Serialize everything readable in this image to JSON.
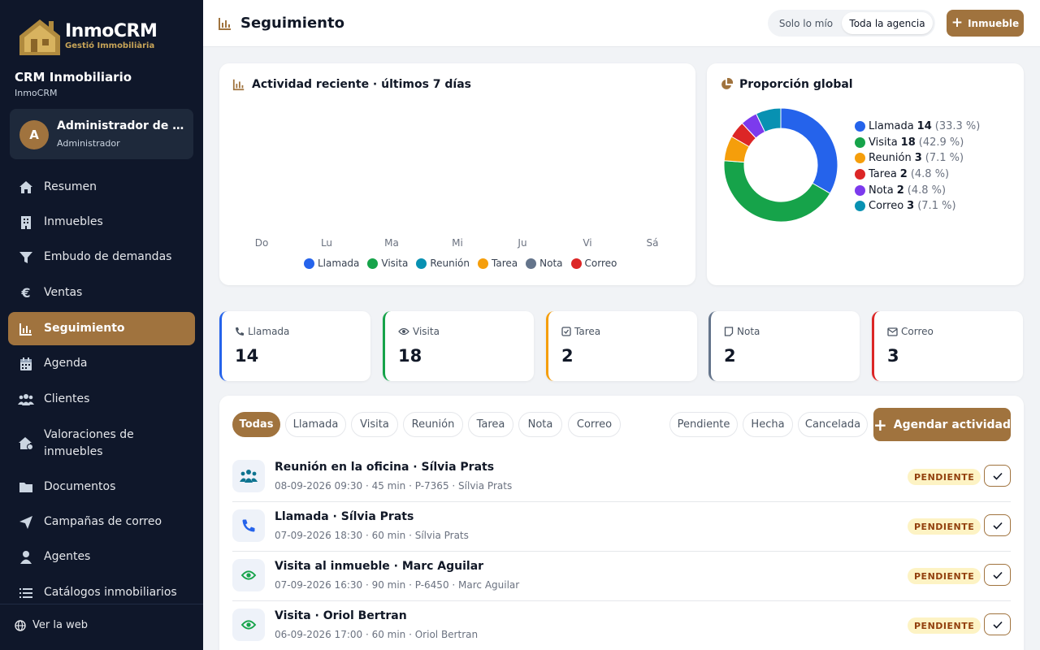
{
  "brand": {
    "title": "InmoCRM",
    "subtitle": "Gestió Immobiliària"
  },
  "org": {
    "name": "CRM Inmobiliario",
    "sub": "InmoCRM"
  },
  "user": {
    "initial": "A",
    "name": "Administrador de Demo",
    "role": "Administrador"
  },
  "nav": [
    {
      "label": "Resumen",
      "icon": "home-icon"
    },
    {
      "label": "Inmuebles",
      "icon": "building-icon"
    },
    {
      "label": "Embudo de demandas",
      "icon": "filter-icon"
    },
    {
      "label": "Ventas",
      "icon": "euro-icon"
    },
    {
      "label": "Seguimiento",
      "icon": "chart-icon",
      "active": true
    },
    {
      "label": "Agenda",
      "icon": "calendar-icon"
    },
    {
      "label": "Clientes",
      "icon": "users-icon"
    },
    {
      "label": "Valoraciones de inmuebles",
      "icon": "house-value-icon"
    },
    {
      "label": "Documentos",
      "icon": "folder-icon"
    },
    {
      "label": "Campañas de correo",
      "icon": "paper-plane-icon"
    },
    {
      "label": "Agentes",
      "icon": "agent-icon"
    },
    {
      "label": "Catálogos inmobiliarios",
      "icon": "list-icon"
    }
  ],
  "footer": {
    "web_link": "Ver la web"
  },
  "header": {
    "title": "Seguimiento",
    "scope_options": [
      "Solo lo mío",
      "Toda la agencia"
    ],
    "scope_selected": "Toda la agencia",
    "add_button": "Inmueble"
  },
  "activity_chart": {
    "title": "Actividad reciente · últimos 7 días",
    "days": [
      "Do",
      "Lu",
      "Ma",
      "Mi",
      "Ju",
      "Vi",
      "Sá"
    ],
    "legend": [
      {
        "name": "Llamada",
        "color": "#2563eb"
      },
      {
        "name": "Visita",
        "color": "#16a34a"
      },
      {
        "name": "Reunión",
        "color": "#0891b2"
      },
      {
        "name": "Tarea",
        "color": "#f59e0b"
      },
      {
        "name": "Nota",
        "color": "#64748b"
      },
      {
        "name": "Correo",
        "color": "#dc2626"
      }
    ]
  },
  "chart_data": {
    "type": "pie",
    "title": "Proporción global",
    "donut": true,
    "slices": [
      {
        "name": "Llamada",
        "value": 14,
        "pct": "(33.3 %)",
        "color": "#2563eb"
      },
      {
        "name": "Visita",
        "value": 18,
        "pct": "(42.9 %)",
        "color": "#16a34a"
      },
      {
        "name": "Reunión",
        "value": 3,
        "pct": "(7.1 %)",
        "color": "#f59e0b"
      },
      {
        "name": "Tarea",
        "value": 2,
        "pct": "(4.8 %)",
        "color": "#dc2626"
      },
      {
        "name": "Nota",
        "value": 2,
        "pct": "(4.8 %)",
        "color": "#7c3aed"
      },
      {
        "name": "Correo",
        "value": 3,
        "pct": "(7.1 %)",
        "color": "#0891b2"
      }
    ]
  },
  "stats": [
    {
      "label": "Llamada",
      "value": "14",
      "color": "#2563eb",
      "icon": "phone-icon"
    },
    {
      "label": "Visita",
      "value": "18",
      "color": "#16a34a",
      "icon": "eye-icon"
    },
    {
      "label": "Tarea",
      "value": "2",
      "color": "#f59e0b",
      "icon": "checkbox-icon"
    },
    {
      "label": "Nota",
      "value": "2",
      "color": "#64748b",
      "icon": "note-icon"
    },
    {
      "label": "Correo",
      "value": "3",
      "color": "#dc2626",
      "icon": "mail-icon"
    }
  ],
  "type_filters": [
    "Todas",
    "Llamada",
    "Visita",
    "Reunión",
    "Tarea",
    "Nota",
    "Correo"
  ],
  "type_filter_selected": "Todas",
  "status_filters": [
    "Pendiente",
    "Hecha",
    "Cancelada"
  ],
  "agenda_button": "Agendar actividad",
  "activities": [
    {
      "icon": "meeting-icon",
      "title": "Reunión en la oficina · Sílvia Prats",
      "meta": "08-09-2026 09:30 · 45 min · P-7365 · ",
      "person": "Sílvia Prats",
      "status": "PENDIENTE"
    },
    {
      "icon": "phone-icon",
      "title": "Llamada · Sílvia Prats",
      "meta": "07-09-2026 18:30 · 60 min · ",
      "person": "Sílvia Prats",
      "status": "PENDIENTE"
    },
    {
      "icon": "eye-icon",
      "title": "Visita al inmueble · Marc Aguilar",
      "meta": "07-09-2026 16:30 · 90 min · P-6450 · ",
      "person": "Marc Aguilar",
      "status": "PENDIENTE"
    },
    {
      "icon": "eye-icon",
      "title": "Visita · Oriol Bertran",
      "meta": "06-09-2026 17:00 · 60 min · ",
      "person": "Oriol Bertran",
      "status": "PENDIENTE"
    }
  ]
}
